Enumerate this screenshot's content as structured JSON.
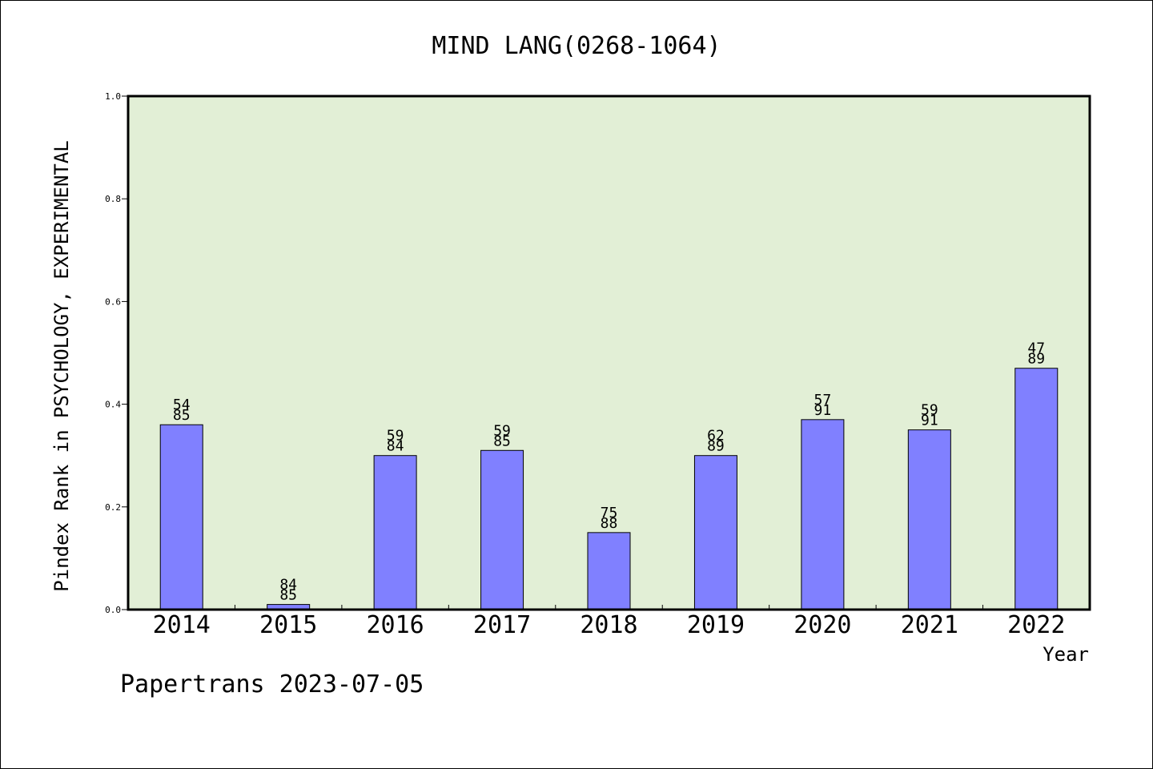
{
  "chart_data": {
    "type": "bar",
    "title": "MIND LANG(0268-1064)",
    "xlabel": "Year",
    "ylabel": "Pindex Rank in PSYCHOLOGY, EXPERIMENTAL",
    "categories": [
      "2014",
      "2015",
      "2016",
      "2017",
      "2018",
      "2019",
      "2020",
      "2021",
      "2022"
    ],
    "values": [
      0.36,
      0.01,
      0.3,
      0.31,
      0.15,
      0.3,
      0.37,
      0.35,
      0.47
    ],
    "bar_labels": [
      {
        "rank": "54",
        "total": "85"
      },
      {
        "rank": "84",
        "total": "85"
      },
      {
        "rank": "59",
        "total": "84"
      },
      {
        "rank": "59",
        "total": "85"
      },
      {
        "rank": "75",
        "total": "88"
      },
      {
        "rank": "62",
        "total": "89"
      },
      {
        "rank": "57",
        "total": "91"
      },
      {
        "rank": "59",
        "total": "91"
      },
      {
        "rank": "47",
        "total": "89"
      }
    ],
    "ylim": [
      0,
      1.0
    ],
    "yticks": [
      "0.0",
      "0.2",
      "0.4",
      "0.6",
      "0.8",
      "1.0"
    ],
    "ytick_values": [
      0,
      0.2,
      0.4,
      0.6,
      0.8,
      1.0
    ],
    "grid": false,
    "colors": {
      "plot_bg": "#e2efd6",
      "bar": "#8080ff",
      "axis": "#000000"
    }
  },
  "footer": {
    "text": "Papertrans 2023-07-05"
  }
}
